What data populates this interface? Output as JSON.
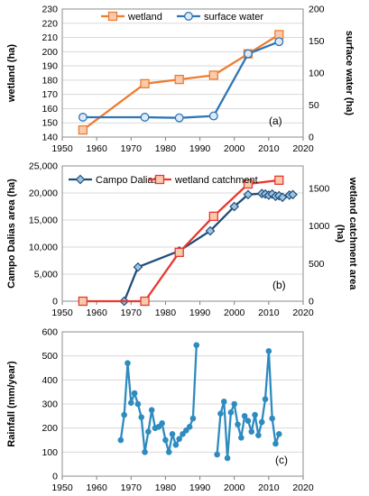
{
  "chart_data": [
    {
      "type": "line",
      "panel_label": "(a)",
      "x_range": [
        1950,
        2020
      ],
      "x_ticks": [
        "1950",
        "1960",
        "1970",
        "1980",
        "1990",
        "2000",
        "2010",
        "2020"
      ],
      "y_left": {
        "label": "wetland (ha)",
        "range": [
          140,
          230
        ],
        "ticks": [
          "140",
          "150",
          "160",
          "170",
          "180",
          "190",
          "200",
          "210",
          "220",
          "230"
        ]
      },
      "y_right": {
        "label": "surface water (ha)",
        "range": [
          0,
          200
        ],
        "ticks": [
          "0",
          "50",
          "100",
          "150",
          "200"
        ]
      },
      "grid": "horizontal",
      "legend": "top",
      "series": [
        {
          "name": "wetland",
          "axis": "left",
          "color": "#ED7D31",
          "marker": "square",
          "x": [
            1956,
            1974,
            1984,
            1994,
            2004,
            2013
          ],
          "y": [
            145,
            177.5,
            180.5,
            183.5,
            198.5,
            212
          ]
        },
        {
          "name": "surface water",
          "axis": "right",
          "color": "#2E75B6",
          "marker": "circle",
          "x": [
            1956,
            1974,
            1984,
            1994,
            2004,
            2013
          ],
          "y": [
            31,
            31,
            30,
            33,
            130,
            149
          ]
        }
      ]
    },
    {
      "type": "line",
      "panel_label": "(b)",
      "x_range": [
        1950,
        2020
      ],
      "x_ticks": [
        "1950",
        "1960",
        "1970",
        "1980",
        "1990",
        "2000",
        "2010",
        "2020"
      ],
      "y_left": {
        "label": "Campo Dalias area (ha)",
        "range": [
          0,
          25000
        ],
        "ticks": [
          "0",
          "5,000",
          "10,000",
          "15,000",
          "20,000",
          "25,000"
        ]
      },
      "y_right": {
        "label": "wetland catchment area (ha)",
        "range": [
          0,
          1800
        ],
        "ticks": [
          "0",
          "500",
          "1000",
          "1500"
        ]
      },
      "grid": "horizontal",
      "legend": "top",
      "series": [
        {
          "name": "Campo Dalias",
          "axis": "left",
          "color": "#1F4E79",
          "marker": "diamond",
          "x": [
            1968,
            1972,
            1984,
            1993,
            2000,
            2004,
            2008,
            2009,
            2010,
            2011,
            2012,
            2013,
            2014,
            2016,
            2017
          ],
          "y": [
            0,
            6300,
            9300,
            13000,
            17500,
            19700,
            19900,
            19800,
            19600,
            19800,
            19400,
            19500,
            19200,
            19600,
            19700
          ]
        },
        {
          "name": "wetland catchment",
          "axis": "right",
          "color": "#E8382F",
          "marker": "square",
          "x": [
            1956,
            1974,
            1984,
            1994,
            2004,
            2013
          ],
          "y": [
            0,
            0,
            650,
            1130,
            1560,
            1610
          ]
        }
      ]
    },
    {
      "type": "line",
      "panel_label": "(c)",
      "x_range": [
        1950,
        2020
      ],
      "x_ticks": [
        "1950",
        "1960",
        "1970",
        "1980",
        "1990",
        "2000",
        "2010",
        "2020"
      ],
      "y_left": {
        "label": "Rainfall (mm/year)",
        "range": [
          0,
          600
        ],
        "ticks": [
          "0",
          "100",
          "200",
          "300",
          "400",
          "500",
          "600"
        ]
      },
      "grid": "horizontal",
      "series": [
        {
          "name": "",
          "color": "#2E8BC0",
          "marker": "circle",
          "segments": [
            {
              "x": [
                1967,
                1968,
                1969,
                1970,
                1971,
                1972,
                1973,
                1974,
                1975,
                1976,
                1977,
                1978,
                1979,
                1980,
                1981,
                1982,
                1983,
                1984,
                1985,
                1986,
                1987,
                1988,
                1989
              ],
              "y": [
                150,
                255,
                470,
                305,
                345,
                300,
                245,
                100,
                185,
                275,
                200,
                205,
                220,
                150,
                100,
                175,
                130,
                155,
                175,
                190,
                205,
                240,
                545
              ]
            },
            {
              "x": [
                1995,
                1996,
                1997,
                1998,
                1999,
                2000,
                2001,
                2002,
                2003,
                2004,
                2005,
                2006,
                2007,
                2008,
                2009,
                2010,
                2011,
                2012,
                2013
              ],
              "y": [
                90,
                260,
                310,
                75,
                265,
                300,
                215,
                160,
                250,
                230,
                185,
                255,
                170,
                225,
                320,
                520,
                240,
                135,
                175
              ]
            }
          ]
        }
      ]
    }
  ]
}
